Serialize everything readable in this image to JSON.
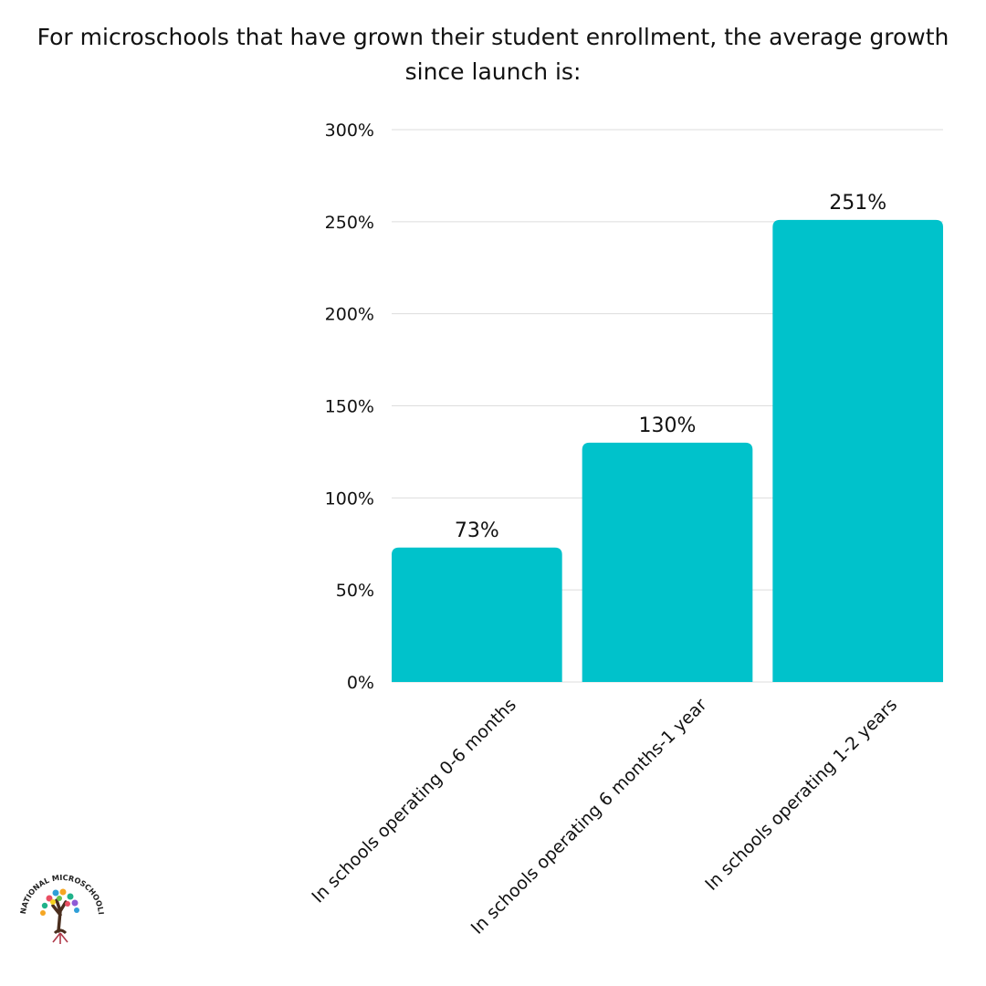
{
  "chart_data": {
    "type": "bar",
    "title": "For microschools that have grown their student enrollment, the average growth since launch is:",
    "categories": [
      "In schools operating 0-6 months",
      "In schools operating 6 months-1 year",
      "In schools operating 1-2 years"
    ],
    "series": [
      {
        "values": [
          73,
          130,
          251
        ]
      }
    ],
    "value_labels": [
      "73%",
      "130%",
      "251%"
    ],
    "ylim": [
      0,
      300
    ],
    "yticks": [
      0,
      50,
      100,
      150,
      200,
      250,
      300
    ],
    "ytick_labels": [
      "0%",
      "50%",
      "100%",
      "150%",
      "200%",
      "250%",
      "300%"
    ],
    "xlabel": "",
    "ylabel": "",
    "grid": true,
    "bar_color": "#00C2CB",
    "grid_color": "#DDDDDD"
  },
  "logo": {
    "text": "NATIONAL MICROSCHOOLING CENTER",
    "icon": "tree-logo-icon"
  }
}
